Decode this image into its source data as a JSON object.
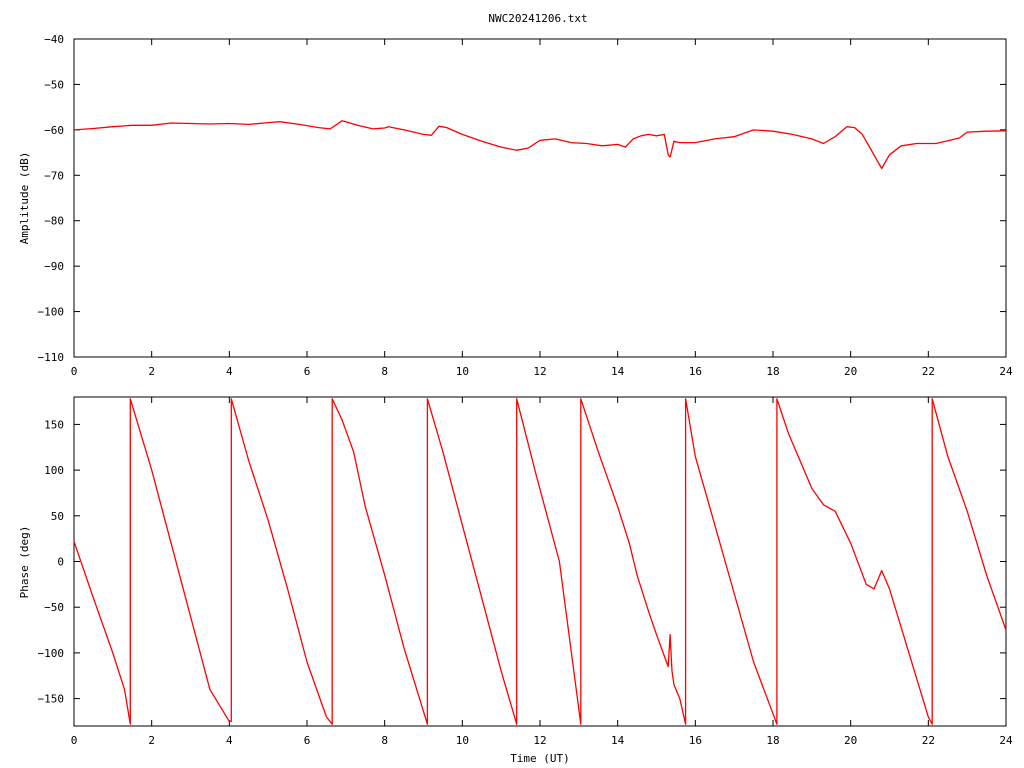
{
  "title": "NWC20241206.txt",
  "colors": {
    "series": "#ff0000",
    "axes": "#000000",
    "background": "#ffffff"
  },
  "chart_data": [
    {
      "type": "line",
      "title": "NWC20241206.txt",
      "xlabel": "",
      "ylabel": "Amplitude (dB)",
      "xlim": [
        0,
        24
      ],
      "ylim": [
        -110,
        -40
      ],
      "xticks": [
        0,
        2,
        4,
        6,
        8,
        10,
        12,
        14,
        16,
        18,
        20,
        22,
        24
      ],
      "yticks": [
        -110,
        -100,
        -90,
        -80,
        -70,
        -60,
        -50,
        -40
      ],
      "grid": false,
      "series": [
        {
          "color": "#ff0000",
          "x": [
            0,
            0.5,
            1,
            1.5,
            2,
            2.5,
            3,
            3.5,
            4,
            4.5,
            5,
            5.3,
            5.8,
            6.3,
            6.6,
            6.9,
            7.0,
            7.3,
            7.7,
            8.0,
            8.1,
            8.5,
            9.0,
            9.2,
            9.4,
            9.6,
            10.0,
            10.5,
            11.0,
            11.4,
            11.7,
            12.0,
            12.4,
            12.8,
            13.2,
            13.6,
            14.0,
            14.2,
            14.4,
            14.6,
            14.8,
            15.0,
            15.2,
            15.3,
            15.35,
            15.45,
            15.6,
            16.0,
            16.5,
            17.0,
            17.5,
            18.0,
            18.5,
            19.0,
            19.3,
            19.6,
            19.9,
            20.1,
            20.3,
            20.5,
            20.7,
            20.8,
            21.0,
            21.3,
            21.7,
            22.2,
            22.8,
            23.0,
            23.5,
            24.0
          ],
          "y": [
            -60.0,
            -59.7,
            -59.3,
            -59.0,
            -59.0,
            -58.5,
            -58.6,
            -58.7,
            -58.6,
            -58.8,
            -58.4,
            -58.2,
            -58.8,
            -59.5,
            -59.8,
            -58.0,
            -58.2,
            -59.0,
            -59.8,
            -59.6,
            -59.3,
            -60.0,
            -61.0,
            -61.2,
            -59.2,
            -59.5,
            -61.0,
            -62.5,
            -63.8,
            -64.5,
            -64.0,
            -62.3,
            -62.0,
            -62.8,
            -63.0,
            -63.5,
            -63.2,
            -63.8,
            -62.0,
            -61.3,
            -61.0,
            -61.3,
            -61.0,
            -65.5,
            -66.0,
            -62.5,
            -62.8,
            -62.8,
            -62.0,
            -61.5,
            -60.0,
            -60.3,
            -61.0,
            -62.0,
            -63.0,
            -61.5,
            -59.3,
            -59.5,
            -61.0,
            -64.0,
            -67.0,
            -68.5,
            -65.5,
            -63.5,
            -63.0,
            -63.0,
            -61.8,
            -60.5,
            -60.3,
            -60.2
          ]
        }
      ]
    },
    {
      "type": "line",
      "title": "",
      "xlabel": "Time (UT)",
      "ylabel": "Phase (deg)",
      "xlim": [
        0,
        24
      ],
      "ylim": [
        -180,
        180
      ],
      "xticks": [
        0,
        2,
        4,
        6,
        8,
        10,
        12,
        14,
        16,
        18,
        20,
        22,
        24
      ],
      "yticks": [
        -150,
        -100,
        -50,
        0,
        50,
        100,
        150
      ],
      "grid": false,
      "series": [
        {
          "color": "#ff0000",
          "x": [
            0,
            0.5,
            1.0,
            1.3,
            1.45,
            1.45,
            2.0,
            2.5,
            3.0,
            3.5,
            4.0,
            4.05,
            4.05,
            4.5,
            5.0,
            5.5,
            6.0,
            6.5,
            6.65,
            6.65,
            6.9,
            7.2,
            7.5,
            8.0,
            8.5,
            9.1,
            9.1,
            9.5,
            10.0,
            10.5,
            11.0,
            11.4,
            11.4,
            11.9,
            12.5,
            13.05,
            13.05,
            13.5,
            14.0,
            14.3,
            14.5,
            14.8,
            15.0,
            15.3,
            15.35,
            15.4,
            15.45,
            15.6,
            15.75,
            15.75,
            16.0,
            16.5,
            17.0,
            17.5,
            18.1,
            18.1,
            18.4,
            18.7,
            19.0,
            19.3,
            19.6,
            20.0,
            20.4,
            20.6,
            20.8,
            21.0,
            21.5,
            22.0,
            22.1,
            22.1,
            22.5,
            23.0,
            23.5,
            24.0
          ],
          "y": [
            22,
            -40,
            -100,
            -140,
            -178,
            178,
            100,
            20,
            -60,
            -140,
            -175,
            -175,
            178,
            110,
            45,
            -30,
            -110,
            -170,
            -178,
            178,
            155,
            120,
            60,
            -15,
            -95,
            -178,
            178,
            120,
            40,
            -40,
            -120,
            -178,
            178,
            95,
            0,
            -178,
            178,
            120,
            60,
            20,
            -15,
            -55,
            -80,
            -115,
            -80,
            -120,
            -135,
            -150,
            -178,
            178,
            115,
            40,
            -35,
            -110,
            -178,
            178,
            140,
            110,
            80,
            62,
            55,
            20,
            -25,
            -30,
            -10,
            -30,
            -100,
            -170,
            -178,
            178,
            115,
            55,
            -15,
            -75
          ]
        }
      ]
    }
  ]
}
